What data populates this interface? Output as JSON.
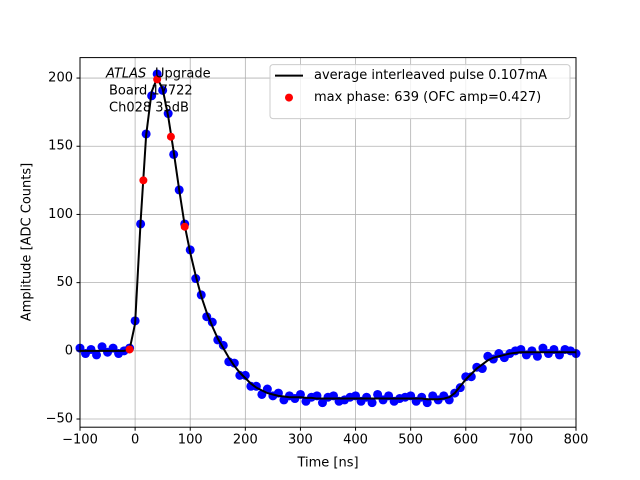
{
  "chart_data": {
    "type": "scatter-line",
    "xlabel": "Time [ns]",
    "ylabel": "Amplitude [ADC Counts]",
    "annotations": [
      "ATLAS",
      "Upgrade",
      "Board 17722",
      "Ch028 35dB"
    ],
    "xlim": [
      -100,
      800
    ],
    "ylim": [
      -56,
      215
    ],
    "xticks": [
      {
        "value": -100,
        "label": "−100"
      },
      0,
      100,
      200,
      300,
      400,
      500,
      600,
      700,
      800
    ],
    "yticks": [
      {
        "value": -50,
        "label": "−50"
      },
      0,
      50,
      100,
      150,
      200
    ],
    "grid": true,
    "legend": "upper right",
    "x": [
      -100,
      -90,
      -80,
      -70,
      -60,
      -50,
      -40,
      -30,
      -20,
      -10,
      0,
      10,
      20,
      30,
      40,
      50,
      60,
      70,
      80,
      90,
      100,
      110,
      120,
      130,
      140,
      150,
      160,
      170,
      180,
      190,
      200,
      210,
      220,
      230,
      240,
      250,
      260,
      270,
      280,
      290,
      300,
      310,
      320,
      330,
      340,
      350,
      360,
      370,
      380,
      390,
      400,
      410,
      420,
      430,
      440,
      450,
      460,
      470,
      480,
      490,
      500,
      510,
      520,
      530,
      540,
      550,
      560,
      570,
      580,
      590,
      600,
      610,
      620,
      630,
      640,
      650,
      660,
      670,
      680,
      690,
      700,
      710,
      720,
      730,
      740,
      750,
      760,
      770,
      780,
      790,
      800
    ],
    "series": [
      {
        "name": "average interleaved pulse 0.107mA",
        "color": "#000000",
        "style": "line",
        "values": [
          0,
          0,
          0,
          0,
          0,
          0,
          0,
          0,
          0,
          1,
          20,
          95,
          158,
          190,
          200,
          192,
          172,
          146,
          118,
          92,
          72,
          55,
          40,
          28,
          18,
          9,
          2,
          -5,
          -11,
          -16,
          -20,
          -24,
          -27,
          -29,
          -31,
          -32,
          -33,
          -33.5,
          -34,
          -34,
          -34,
          -34.5,
          -34.5,
          -35,
          -35,
          -35,
          -35,
          -35,
          -35,
          -35,
          -35,
          -35,
          -35,
          -35,
          -35,
          -35,
          -35,
          -35,
          -35,
          -35,
          -35,
          -35,
          -35,
          -35.5,
          -35.5,
          -35.5,
          -35,
          -34,
          -31,
          -26,
          -21,
          -17,
          -13,
          -10,
          -7,
          -5,
          -4,
          -3,
          -2,
          -1.5,
          -1,
          -1,
          -1,
          -1,
          -1,
          -1,
          -1,
          -1,
          -1,
          -1,
          -1
        ]
      },
      {
        "color": "#0000ff",
        "style": "points",
        "values": [
          2,
          -2,
          1,
          -3,
          3,
          -1,
          2,
          -2,
          0,
          2,
          22,
          93,
          159,
          187,
          203,
          191,
          174,
          144,
          118,
          93,
          74,
          53,
          41,
          25,
          21,
          8,
          4,
          -8,
          -9,
          -18,
          -18,
          -26,
          -26,
          -32,
          -28,
          -33,
          -31,
          -36,
          -33,
          -35,
          -32,
          -37,
          -34,
          -33,
          -38,
          -34,
          -33,
          -37,
          -36,
          -34,
          -33,
          -37,
          -34,
          -38,
          -32,
          -36,
          -33,
          -37,
          -35,
          -34,
          -33,
          -37,
          -34,
          -38,
          -33,
          -36,
          -33,
          -36,
          -31,
          -27,
          -19,
          -19,
          -12,
          -13,
          -4,
          -6,
          -2,
          -5,
          -2,
          0,
          1,
          -3,
          0,
          -4,
          2,
          -2,
          1,
          -3,
          1,
          0,
          -2
        ]
      },
      {
        "name": "max phase: 639 (OFC amp=0.427)",
        "color": "#ff0000",
        "style": "markers",
        "x": [
          -10,
          15,
          40,
          65,
          90
        ],
        "values": [
          1,
          125,
          199,
          157,
          91
        ]
      }
    ]
  }
}
